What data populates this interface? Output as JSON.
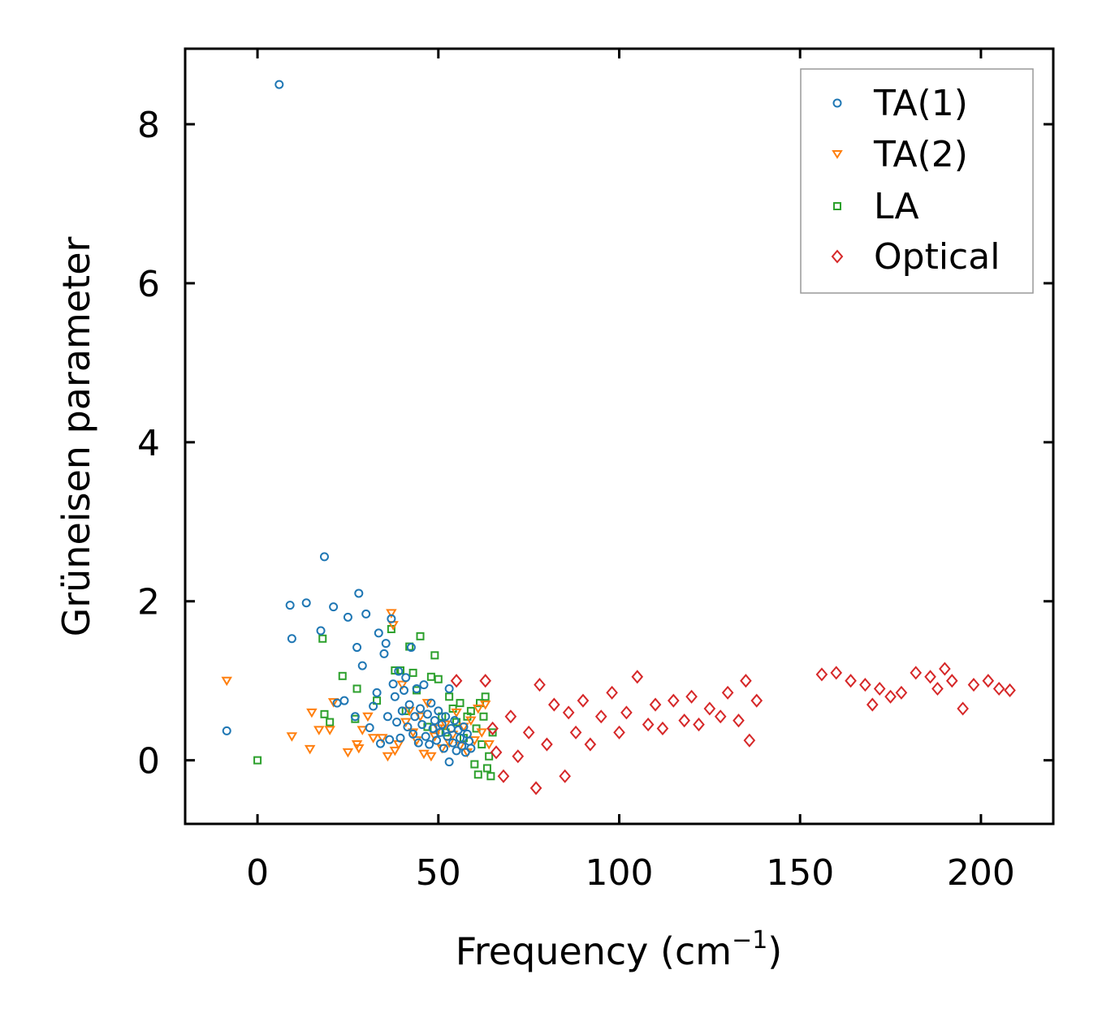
{
  "chart_data": {
    "type": "scatter",
    "xlabel": "Frequency (cm",
    "xlabel_sup": "−1",
    "xlabel_close": ")",
    "ylabel": "Grüneisen parameter",
    "xlim": [
      -20,
      220
    ],
    "ylim": [
      -0.8,
      8.95
    ],
    "xticks": [
      0,
      50,
      100,
      150,
      200
    ],
    "yticks": [
      0,
      2,
      4,
      6,
      8
    ],
    "xtick_labels": [
      "0",
      "50",
      "100",
      "150",
      "200"
    ],
    "ytick_labels": [
      "0",
      "2",
      "4",
      "6",
      "8"
    ],
    "grid": false,
    "legend_position": "top-right",
    "series": [
      {
        "name": "TA(1)",
        "marker": "circle",
        "color": "#1f77b4",
        "points": [
          [
            -8.5,
            0.37
          ],
          [
            6,
            8.5
          ],
          [
            9,
            1.95
          ],
          [
            9.5,
            1.53
          ],
          [
            13.5,
            1.98
          ],
          [
            17.5,
            1.63
          ],
          [
            18.5,
            2.56
          ],
          [
            21,
            1.93
          ],
          [
            22,
            0.72
          ],
          [
            24,
            0.75
          ],
          [
            25,
            1.8
          ],
          [
            27,
            0.55
          ],
          [
            27.5,
            1.42
          ],
          [
            28,
            2.1
          ],
          [
            29,
            1.19
          ],
          [
            30,
            1.84
          ],
          [
            31,
            0.41
          ],
          [
            32,
            0.68
          ],
          [
            33,
            0.85
          ],
          [
            33.5,
            1.6
          ],
          [
            34,
            0.21
          ],
          [
            35,
            1.34
          ],
          [
            35.5,
            1.47
          ],
          [
            36,
            0.55
          ],
          [
            36.5,
            0.26
          ],
          [
            37,
            1.78
          ],
          [
            37.5,
            0.96
          ],
          [
            38,
            0.8
          ],
          [
            38.5,
            0.48
          ],
          [
            39,
            1.12
          ],
          [
            39.5,
            0.28
          ],
          [
            40,
            0.62
          ],
          [
            40.5,
            0.88
          ],
          [
            41,
            1.04
          ],
          [
            41.5,
            0.42
          ],
          [
            42,
            0.7
          ],
          [
            42.5,
            1.42
          ],
          [
            43,
            0.33
          ],
          [
            43.5,
            0.55
          ],
          [
            44,
            0.9
          ],
          [
            44.5,
            0.22
          ],
          [
            45,
            0.65
          ],
          [
            45.5,
            0.45
          ],
          [
            46,
            0.95
          ],
          [
            46.5,
            0.3
          ],
          [
            47,
            0.58
          ],
          [
            47.5,
            0.2
          ],
          [
            48,
            0.72
          ],
          [
            48.5,
            0.4
          ],
          [
            49,
            0.5
          ],
          [
            49.5,
            0.25
          ],
          [
            50,
            0.62
          ],
          [
            50.5,
            0.35
          ],
          [
            51,
            0.45
          ],
          [
            51.5,
            0.15
          ],
          [
            52,
            0.55
          ],
          [
            52.5,
            0.3
          ],
          [
            53,
            0.9
          ],
          [
            53.5,
            0.4
          ],
          [
            54,
            0.22
          ],
          [
            54.5,
            0.5
          ],
          [
            55,
            0.12
          ],
          [
            55.5,
            0.38
          ],
          [
            56,
            0.28
          ],
          [
            56.5,
            0.18
          ],
          [
            57,
            0.42
          ],
          [
            57.5,
            0.1
          ],
          [
            58,
            0.33
          ],
          [
            58.5,
            0.24
          ],
          [
            59,
            0.15
          ],
          [
            53,
            -0.02
          ]
        ]
      },
      {
        "name": "TA(2)",
        "marker": "triangle-down",
        "color": "#ff7f0e",
        "points": [
          [
            -8.5,
            1.0
          ],
          [
            9.5,
            0.3
          ],
          [
            14.5,
            0.14
          ],
          [
            15,
            0.6
          ],
          [
            17,
            0.38
          ],
          [
            20,
            0.38
          ],
          [
            21,
            0.73
          ],
          [
            25,
            0.1
          ],
          [
            27.5,
            0.2
          ],
          [
            28,
            0.15
          ],
          [
            29,
            0.38
          ],
          [
            30.5,
            0.55
          ],
          [
            32,
            0.28
          ],
          [
            34.5,
            0.28
          ],
          [
            36,
            0.05
          ],
          [
            37,
            1.85
          ],
          [
            37.5,
            1.7
          ],
          [
            38,
            0.12
          ],
          [
            39,
            0.2
          ],
          [
            40,
            0.95
          ],
          [
            41,
            0.48
          ],
          [
            42,
            0.62
          ],
          [
            43,
            0.35
          ],
          [
            44,
            0.25
          ],
          [
            45,
            0.55
          ],
          [
            46,
            0.08
          ],
          [
            47,
            0.72
          ],
          [
            48,
            0.05
          ],
          [
            49,
            0.3
          ],
          [
            50,
            0.4
          ],
          [
            51,
            0.15
          ],
          [
            52,
            0.45
          ],
          [
            53,
            0.22
          ],
          [
            54,
            0.32
          ],
          [
            55,
            0.6
          ],
          [
            56,
            0.18
          ],
          [
            57,
            0.42
          ],
          [
            58,
            0.1
          ],
          [
            59,
            0.5
          ],
          [
            60,
            0.25
          ],
          [
            61,
            0.65
          ],
          [
            62,
            0.35
          ],
          [
            63,
            0.7
          ],
          [
            64,
            0.2
          ]
        ]
      },
      {
        "name": "LA",
        "marker": "square",
        "color": "#2ca02c",
        "points": [
          [
            0,
            0.0
          ],
          [
            18,
            1.53
          ],
          [
            18.5,
            0.58
          ],
          [
            20,
            0.48
          ],
          [
            23.5,
            1.06
          ],
          [
            27,
            0.52
          ],
          [
            27.5,
            0.9
          ],
          [
            33,
            0.75
          ],
          [
            37,
            1.65
          ],
          [
            38,
            1.13
          ],
          [
            39.5,
            1.13
          ],
          [
            41,
            0.62
          ],
          [
            42,
            1.43
          ],
          [
            43,
            1.1
          ],
          [
            44,
            0.88
          ],
          [
            45,
            1.56
          ],
          [
            47,
            0.42
          ],
          [
            48,
            1.05
          ],
          [
            49,
            1.32
          ],
          [
            50,
            1.02
          ],
          [
            51,
            0.55
          ],
          [
            52,
            0.35
          ],
          [
            53,
            0.8
          ],
          [
            54,
            0.65
          ],
          [
            55,
            0.48
          ],
          [
            56,
            0.72
          ],
          [
            57,
            0.28
          ],
          [
            58,
            0.55
          ],
          [
            59,
            0.62
          ],
          [
            60,
            -0.05
          ],
          [
            60.5,
            0.4
          ],
          [
            61,
            -0.18
          ],
          [
            61.5,
            0.72
          ],
          [
            62,
            0.2
          ],
          [
            62.5,
            0.55
          ],
          [
            63,
            0.8
          ],
          [
            63.5,
            -0.1
          ],
          [
            64,
            0.05
          ],
          [
            64.5,
            -0.2
          ],
          [
            65,
            0.35
          ]
        ]
      },
      {
        "name": "Optical",
        "marker": "diamond",
        "color": "#d62728",
        "points": [
          [
            55,
            1.0
          ],
          [
            63,
            1.0
          ],
          [
            65,
            0.4
          ],
          [
            66,
            0.1
          ],
          [
            68,
            -0.2
          ],
          [
            70,
            0.55
          ],
          [
            72,
            0.05
          ],
          [
            75,
            0.35
          ],
          [
            77,
            -0.35
          ],
          [
            78,
            0.95
          ],
          [
            80,
            0.2
          ],
          [
            82,
            0.7
          ],
          [
            85,
            -0.2
          ],
          [
            86,
            0.6
          ],
          [
            88,
            0.35
          ],
          [
            90,
            0.75
          ],
          [
            92,
            0.2
          ],
          [
            95,
            0.55
          ],
          [
            98,
            0.85
          ],
          [
            100,
            0.35
          ],
          [
            102,
            0.6
          ],
          [
            105,
            1.05
          ],
          [
            108,
            0.45
          ],
          [
            110,
            0.7
          ],
          [
            112,
            0.4
          ],
          [
            115,
            0.75
          ],
          [
            118,
            0.5
          ],
          [
            120,
            0.8
          ],
          [
            122,
            0.45
          ],
          [
            125,
            0.65
          ],
          [
            128,
            0.55
          ],
          [
            130,
            0.85
          ],
          [
            133,
            0.5
          ],
          [
            135,
            1.0
          ],
          [
            136,
            0.25
          ],
          [
            138,
            0.75
          ],
          [
            156,
            1.08
          ],
          [
            160,
            1.1
          ],
          [
            164,
            1.0
          ],
          [
            168,
            0.95
          ],
          [
            170,
            0.7
          ],
          [
            172,
            0.9
          ],
          [
            175,
            0.8
          ],
          [
            178,
            0.85
          ],
          [
            182,
            1.1
          ],
          [
            186,
            1.05
          ],
          [
            188,
            0.9
          ],
          [
            190,
            1.15
          ],
          [
            192,
            1.0
          ],
          [
            195,
            0.65
          ],
          [
            198,
            0.95
          ],
          [
            202,
            1.0
          ],
          [
            205,
            0.9
          ],
          [
            208,
            0.88
          ]
        ]
      }
    ]
  }
}
